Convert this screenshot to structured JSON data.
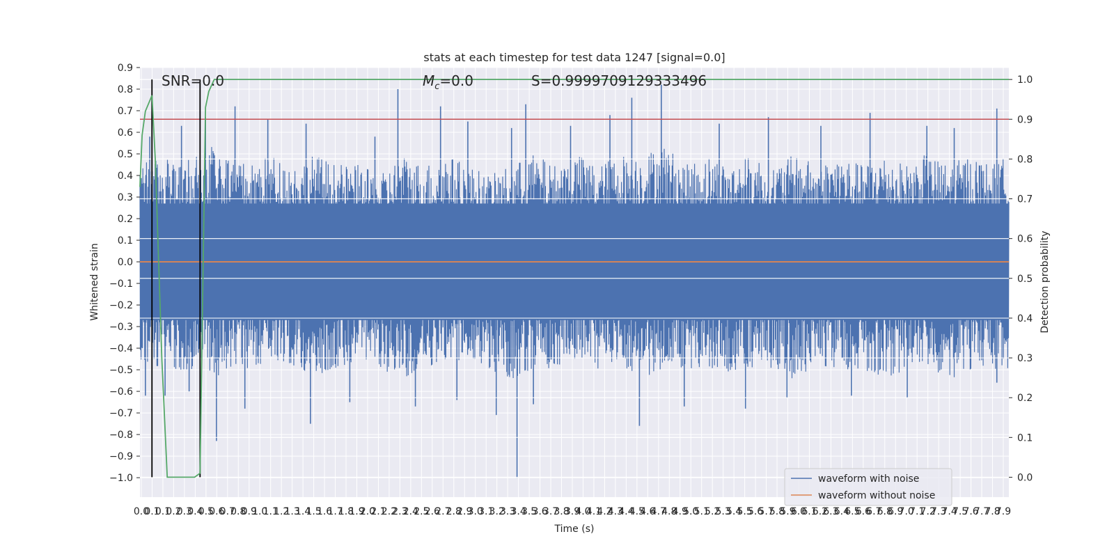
{
  "chart_data": {
    "type": "line",
    "title": "stats at each timestep for test data 1247 [signal=0.0]",
    "xlabel": "Time (s)",
    "ylabel": "Whitened strain",
    "ylabel_right": "Detection probability",
    "xlim": [
      0.0,
      7.95
    ],
    "ylim": [
      -1.09,
      0.9
    ],
    "ylim_right": [
      -0.05,
      1.03
    ],
    "x_tick_labels": [
      "0.0",
      "0.1",
      "0.1",
      "0.2",
      "0.3",
      "0.4",
      "0.5",
      "0.6",
      "0.7",
      "0.8",
      "0.9",
      "1.0",
      "1.1",
      "1.2",
      "1.3",
      "1.4",
      "1.5",
      "1.6",
      "1.7",
      "1.8",
      "1.9",
      "2.0",
      "2.1",
      "2.2",
      "2.3",
      "2.4",
      "2.5",
      "2.6",
      "2.7",
      "2.8",
      "2.9",
      "3.0",
      "3.1",
      "3.2",
      "3.3",
      "3.4",
      "3.5",
      "3.6",
      "3.7",
      "3.8",
      "3.9",
      "4.0",
      "4.1",
      "4.2",
      "4.3",
      "4.4",
      "4.5",
      "4.6",
      "4.7",
      "4.8",
      "4.9",
      "5.0",
      "5.1",
      "5.2",
      "5.3",
      "5.4",
      "5.5",
      "5.6",
      "5.7",
      "5.8",
      "5.9",
      "6.0",
      "6.1",
      "6.2",
      "6.3",
      "6.4",
      "6.5",
      "6.6",
      "6.7",
      "6.8",
      "6.9",
      "7.0",
      "7.1",
      "7.2",
      "7.3",
      "7.4",
      "7.5",
      "7.6",
      "7.7",
      "7.8",
      "7.9"
    ],
    "y_ticks": [
      0.9,
      0.8,
      0.7,
      0.6,
      0.5,
      0.4,
      0.3,
      0.2,
      0.1,
      0.0,
      -0.1,
      -0.2,
      -0.3,
      -0.4,
      -0.5,
      -0.6,
      -0.7,
      -0.8,
      -0.9,
      -1.0
    ],
    "y_tick_labels": [
      "0.9",
      "0.8",
      "0.7",
      "0.6",
      "0.5",
      "0.4",
      "0.3",
      "0.2",
      "0.1",
      "0.0",
      "−0.1",
      "−0.2",
      "−0.3",
      "−0.4",
      "−0.5",
      "−0.6",
      "−0.7",
      "−0.8",
      "−0.9",
      "−1.0"
    ],
    "y_ticks_right": [
      1.0,
      0.9,
      0.8,
      0.7,
      0.6,
      0.5,
      0.4,
      0.3,
      0.2,
      0.1,
      0.0
    ],
    "y_tick_labels_right": [
      "1.0",
      "0.9",
      "0.8",
      "0.7",
      "0.6",
      "0.5",
      "0.4",
      "0.3",
      "0.2",
      "0.1",
      "0.0"
    ],
    "annotations": {
      "snr": "SNR=0.0",
      "mc_symbol": "M",
      "mc_subscript": "c",
      "mc_value": "=0.0",
      "s": "S=0.9999709129333496"
    },
    "noise_envelope": {
      "x": [
        0.0,
        0.2,
        0.4,
        0.6,
        0.8,
        1.0,
        1.2,
        1.4,
        1.6,
        1.8,
        2.0,
        2.2,
        2.4,
        2.6,
        2.8,
        3.0,
        3.2,
        3.4,
        3.6,
        3.8,
        4.0,
        4.2,
        4.4,
        4.6,
        4.8,
        5.0,
        5.2,
        5.4,
        5.6,
        5.8,
        6.0,
        6.2,
        6.4,
        6.6,
        6.8,
        7.0,
        7.2,
        7.4,
        7.6,
        7.8,
        7.95
      ],
      "upper": [
        0.45,
        0.5,
        0.45,
        0.55,
        0.5,
        0.45,
        0.5,
        0.45,
        0.5,
        0.45,
        0.45,
        0.4,
        0.5,
        0.45,
        0.5,
        0.45,
        0.4,
        0.45,
        0.5,
        0.45,
        0.5,
        0.45,
        0.5,
        0.5,
        0.55,
        0.45,
        0.5,
        0.45,
        0.5,
        0.45,
        0.5,
        0.45,
        0.5,
        0.45,
        0.5,
        0.45,
        0.5,
        0.45,
        0.5,
        0.45,
        0.5
      ],
      "lower": [
        -0.45,
        -0.5,
        -0.5,
        -0.5,
        -0.55,
        -0.5,
        -0.45,
        -0.5,
        -0.55,
        -0.5,
        -0.45,
        -0.5,
        -0.55,
        -0.5,
        -0.5,
        -0.45,
        -0.5,
        -0.55,
        -0.5,
        -0.5,
        -0.45,
        -0.5,
        -0.5,
        -0.55,
        -0.5,
        -0.5,
        -0.5,
        -0.55,
        -0.5,
        -0.5,
        -0.55,
        -0.5,
        -0.5,
        -0.5,
        -0.55,
        -0.5,
        -0.5,
        -0.55,
        -0.5,
        -0.5,
        -0.5
      ]
    },
    "noise_spikes": [
      {
        "x": 0.05,
        "y": -0.62
      },
      {
        "x": 0.09,
        "y": 0.58
      },
      {
        "x": 0.23,
        "y": -0.62
      },
      {
        "x": 0.38,
        "y": 0.63
      },
      {
        "x": 0.45,
        "y": -0.6
      },
      {
        "x": 0.6,
        "y": 0.67
      },
      {
        "x": 0.7,
        "y": -0.83
      },
      {
        "x": 0.87,
        "y": 0.72
      },
      {
        "x": 0.96,
        "y": -0.68
      },
      {
        "x": 1.17,
        "y": 0.66
      },
      {
        "x": 1.52,
        "y": 0.64
      },
      {
        "x": 1.56,
        "y": -0.75
      },
      {
        "x": 1.92,
        "y": -0.65
      },
      {
        "x": 2.15,
        "y": 0.58
      },
      {
        "x": 2.36,
        "y": 0.8
      },
      {
        "x": 2.52,
        "y": -0.67
      },
      {
        "x": 2.75,
        "y": 0.72
      },
      {
        "x": 2.9,
        "y": -0.64
      },
      {
        "x": 3.0,
        "y": 0.65
      },
      {
        "x": 3.26,
        "y": -0.71
      },
      {
        "x": 3.4,
        "y": 0.62
      },
      {
        "x": 3.45,
        "y": -1.0
      },
      {
        "x": 3.53,
        "y": 0.73
      },
      {
        "x": 3.6,
        "y": -0.66
      },
      {
        "x": 3.94,
        "y": 0.63
      },
      {
        "x": 4.3,
        "y": 0.68
      },
      {
        "x": 4.5,
        "y": 0.76
      },
      {
        "x": 4.57,
        "y": -0.76
      },
      {
        "x": 4.77,
        "y": 0.82
      },
      {
        "x": 4.98,
        "y": -0.67
      },
      {
        "x": 5.3,
        "y": 0.64
      },
      {
        "x": 5.54,
        "y": -0.68
      },
      {
        "x": 5.75,
        "y": 0.67
      },
      {
        "x": 5.92,
        "y": -0.63
      },
      {
        "x": 6.23,
        "y": 0.63
      },
      {
        "x": 6.51,
        "y": -0.62
      },
      {
        "x": 6.68,
        "y": 0.69
      },
      {
        "x": 7.02,
        "y": -0.63
      },
      {
        "x": 7.2,
        "y": 0.63
      },
      {
        "x": 7.45,
        "y": 0.62
      },
      {
        "x": 7.84,
        "y": 0.71
      },
      {
        "x": 7.84,
        "y": -0.56
      }
    ],
    "series": [
      {
        "name": "waveform with noise",
        "color": "#4c72b0",
        "axis": "left",
        "kind": "noise"
      },
      {
        "name": "waveform without noise",
        "color": "#dd8452",
        "axis": "left",
        "x": [
          0.0,
          7.95
        ],
        "y": [
          0.0,
          0.0
        ]
      },
      {
        "name": "detection probability",
        "color": "#55a868",
        "axis": "right",
        "in_legend": false,
        "x": [
          0.0,
          0.02,
          0.05,
          0.11,
          0.14,
          0.2,
          0.25,
          0.5,
          0.55,
          0.6,
          0.63,
          0.68,
          7.95
        ],
        "y": [
          0.73,
          0.86,
          0.92,
          0.96,
          0.8,
          0.3,
          0.0,
          0.0,
          0.01,
          0.93,
          0.97,
          1.0,
          1.0
        ]
      }
    ],
    "threshold": {
      "value": 0.9,
      "axis": "right",
      "color": "#c44e52"
    },
    "vertical_markers": [
      {
        "x": 0.11,
        "y_top_right": 1.0,
        "color": "#000000"
      },
      {
        "x": 0.55,
        "y_top_right": 1.0,
        "color": "#000000"
      }
    ],
    "legend": {
      "position": "lower-right",
      "entries": [
        {
          "label": "waveform with noise",
          "color": "#4c72b0"
        },
        {
          "label": "waveform without noise",
          "color": "#dd8452"
        }
      ]
    },
    "grid": true
  }
}
